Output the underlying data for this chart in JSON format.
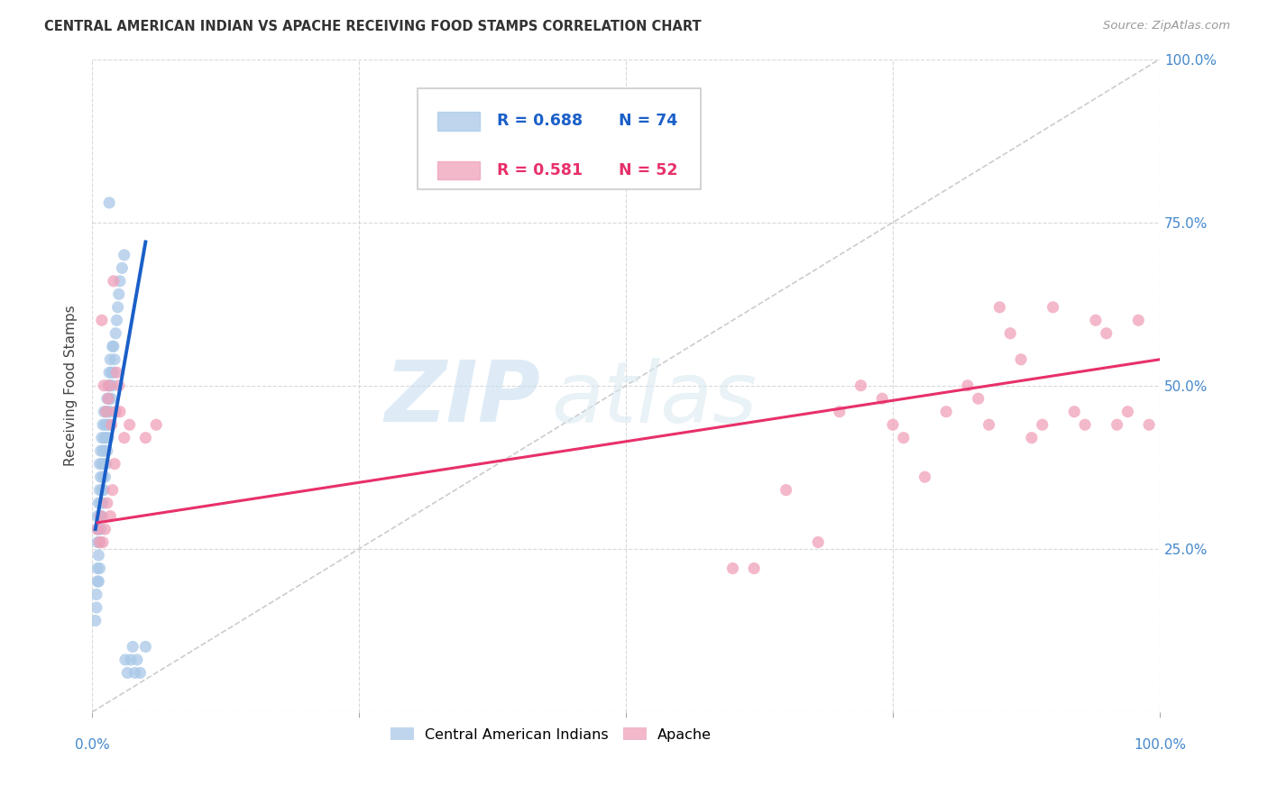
{
  "title": "CENTRAL AMERICAN INDIAN VS APACHE RECEIVING FOOD STAMPS CORRELATION CHART",
  "source": "Source: ZipAtlas.com",
  "ylabel": "Receiving Food Stamps",
  "xlim": [
    0,
    1
  ],
  "ylim": [
    0,
    1
  ],
  "xticks": [
    0,
    0.25,
    0.5,
    0.75,
    1.0
  ],
  "yticks": [
    0,
    0.25,
    0.5,
    0.75,
    1.0
  ],
  "xticklabels": [
    "0.0%",
    "",
    "",
    "",
    "100.0%"
  ],
  "yticklabels_right": [
    "",
    "25.0%",
    "50.0%",
    "75.0%",
    "100.0%"
  ],
  "watermark_zip": "ZIP",
  "watermark_atlas": "atlas",
  "legend_r1": "R = 0.688",
  "legend_n1": "N = 74",
  "legend_r2": "R = 0.581",
  "legend_n2": "N = 52",
  "blue_color": "#a8c8e8",
  "pink_color": "#f0a0b8",
  "blue_line_color": "#1a5fc8",
  "pink_line_color": "#e8306a",
  "blue_scatter": [
    [
      0.003,
      0.14
    ],
    [
      0.004,
      0.16
    ],
    [
      0.004,
      0.18
    ],
    [
      0.005,
      0.2
    ],
    [
      0.005,
      0.22
    ],
    [
      0.005,
      0.26
    ],
    [
      0.005,
      0.28
    ],
    [
      0.005,
      0.3
    ],
    [
      0.006,
      0.2
    ],
    [
      0.006,
      0.24
    ],
    [
      0.006,
      0.28
    ],
    [
      0.006,
      0.32
    ],
    [
      0.007,
      0.22
    ],
    [
      0.007,
      0.26
    ],
    [
      0.007,
      0.3
    ],
    [
      0.007,
      0.34
    ],
    [
      0.007,
      0.38
    ],
    [
      0.008,
      0.28
    ],
    [
      0.008,
      0.32
    ],
    [
      0.008,
      0.36
    ],
    [
      0.008,
      0.4
    ],
    [
      0.009,
      0.3
    ],
    [
      0.009,
      0.34
    ],
    [
      0.009,
      0.38
    ],
    [
      0.009,
      0.42
    ],
    [
      0.01,
      0.32
    ],
    [
      0.01,
      0.36
    ],
    [
      0.01,
      0.4
    ],
    [
      0.01,
      0.44
    ],
    [
      0.011,
      0.34
    ],
    [
      0.011,
      0.38
    ],
    [
      0.011,
      0.42
    ],
    [
      0.011,
      0.46
    ],
    [
      0.012,
      0.36
    ],
    [
      0.012,
      0.4
    ],
    [
      0.012,
      0.44
    ],
    [
      0.013,
      0.38
    ],
    [
      0.013,
      0.42
    ],
    [
      0.013,
      0.46
    ],
    [
      0.014,
      0.4
    ],
    [
      0.014,
      0.44
    ],
    [
      0.014,
      0.48
    ],
    [
      0.015,
      0.42
    ],
    [
      0.015,
      0.46
    ],
    [
      0.015,
      0.5
    ],
    [
      0.016,
      0.44
    ],
    [
      0.016,
      0.48
    ],
    [
      0.016,
      0.52
    ],
    [
      0.017,
      0.46
    ],
    [
      0.017,
      0.5
    ],
    [
      0.017,
      0.54
    ],
    [
      0.018,
      0.48
    ],
    [
      0.018,
      0.52
    ],
    [
      0.019,
      0.5
    ],
    [
      0.019,
      0.56
    ],
    [
      0.02,
      0.52
    ],
    [
      0.02,
      0.56
    ],
    [
      0.021,
      0.54
    ],
    [
      0.022,
      0.58
    ],
    [
      0.023,
      0.6
    ],
    [
      0.024,
      0.62
    ],
    [
      0.025,
      0.64
    ],
    [
      0.026,
      0.66
    ],
    [
      0.028,
      0.68
    ],
    [
      0.03,
      0.7
    ],
    [
      0.031,
      0.08
    ],
    [
      0.033,
      0.06
    ],
    [
      0.036,
      0.08
    ],
    [
      0.038,
      0.1
    ],
    [
      0.04,
      0.06
    ],
    [
      0.042,
      0.08
    ],
    [
      0.045,
      0.06
    ],
    [
      0.016,
      0.78
    ],
    [
      0.05,
      0.1
    ]
  ],
  "pink_scatter": [
    [
      0.005,
      0.28
    ],
    [
      0.007,
      0.26
    ],
    [
      0.008,
      0.3
    ],
    [
      0.009,
      0.6
    ],
    [
      0.01,
      0.26
    ],
    [
      0.011,
      0.5
    ],
    [
      0.012,
      0.28
    ],
    [
      0.013,
      0.46
    ],
    [
      0.014,
      0.32
    ],
    [
      0.015,
      0.48
    ],
    [
      0.016,
      0.5
    ],
    [
      0.017,
      0.3
    ],
    [
      0.018,
      0.44
    ],
    [
      0.019,
      0.34
    ],
    [
      0.02,
      0.66
    ],
    [
      0.021,
      0.38
    ],
    [
      0.022,
      0.46
    ],
    [
      0.023,
      0.52
    ],
    [
      0.025,
      0.5
    ],
    [
      0.026,
      0.46
    ],
    [
      0.03,
      0.42
    ],
    [
      0.035,
      0.44
    ],
    [
      0.05,
      0.42
    ],
    [
      0.06,
      0.44
    ],
    [
      0.6,
      0.22
    ],
    [
      0.62,
      0.22
    ],
    [
      0.65,
      0.34
    ],
    [
      0.68,
      0.26
    ],
    [
      0.7,
      0.46
    ],
    [
      0.72,
      0.5
    ],
    [
      0.74,
      0.48
    ],
    [
      0.75,
      0.44
    ],
    [
      0.76,
      0.42
    ],
    [
      0.78,
      0.36
    ],
    [
      0.8,
      0.46
    ],
    [
      0.82,
      0.5
    ],
    [
      0.83,
      0.48
    ],
    [
      0.84,
      0.44
    ],
    [
      0.85,
      0.62
    ],
    [
      0.86,
      0.58
    ],
    [
      0.87,
      0.54
    ],
    [
      0.88,
      0.42
    ],
    [
      0.89,
      0.44
    ],
    [
      0.9,
      0.62
    ],
    [
      0.92,
      0.46
    ],
    [
      0.93,
      0.44
    ],
    [
      0.94,
      0.6
    ],
    [
      0.95,
      0.58
    ],
    [
      0.96,
      0.44
    ],
    [
      0.97,
      0.46
    ],
    [
      0.98,
      0.6
    ],
    [
      0.99,
      0.44
    ]
  ],
  "blue_trendline_x": [
    0.003,
    0.05
  ],
  "blue_trendline_y": [
    0.28,
    0.72
  ],
  "pink_trendline_x": [
    0.005,
    1.0
  ],
  "pink_trendline_y": [
    0.29,
    0.54
  ],
  "diagonal_line": [
    [
      0.0,
      0.0
    ],
    [
      1.0,
      1.0
    ]
  ],
  "background_color": "#ffffff",
  "grid_color": "#d0d0d0",
  "tick_label_color": "#4488cc",
  "title_color": "#333333",
  "source_color": "#999999",
  "ylabel_color": "#444444"
}
